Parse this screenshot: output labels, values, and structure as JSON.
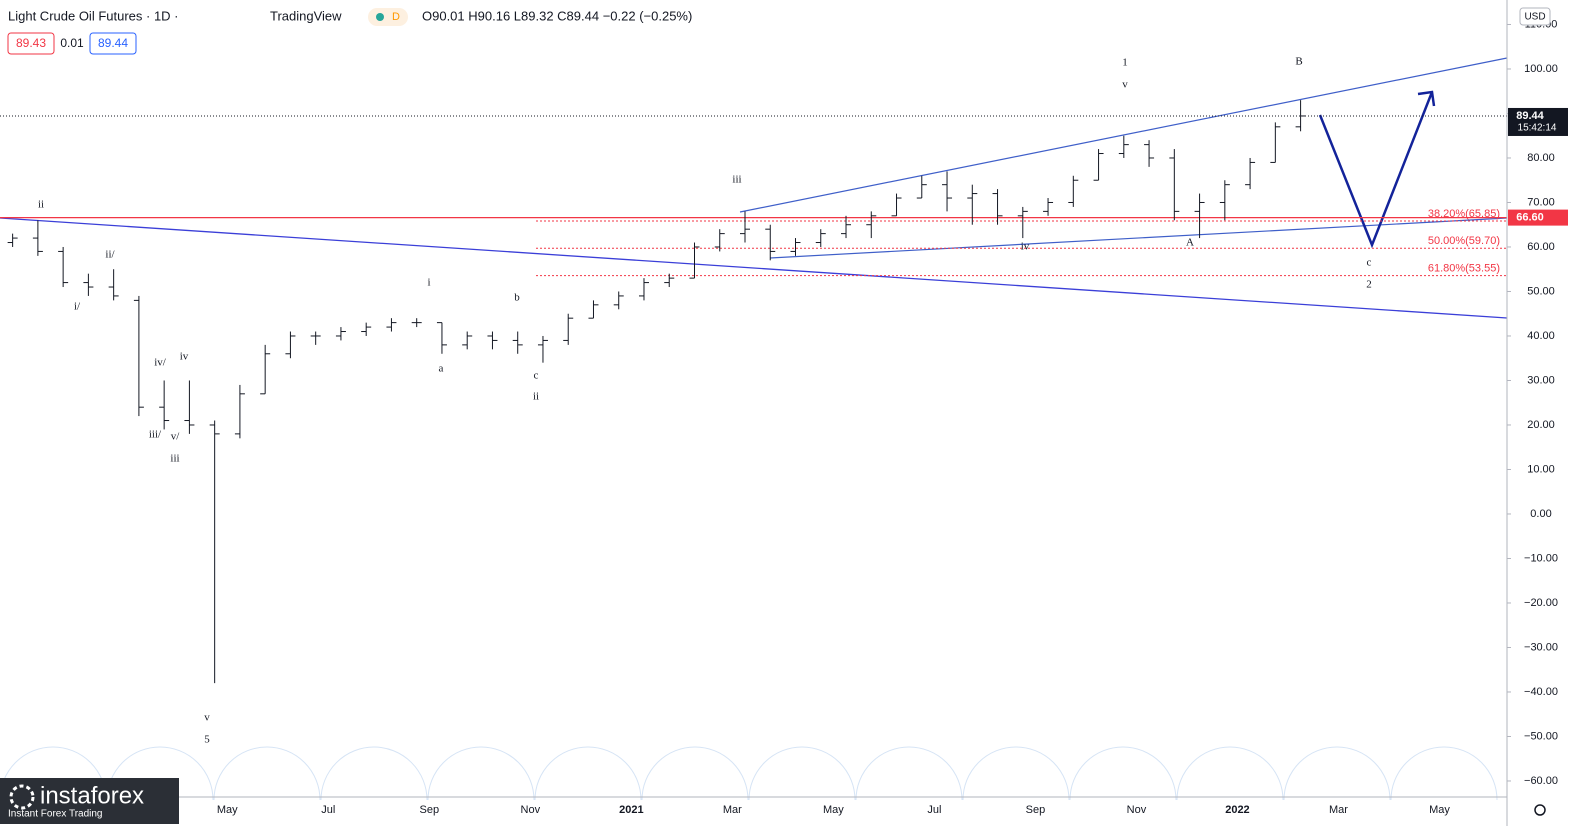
{
  "header": {
    "symbol": "Light Crude Oil Futures · 1D ·",
    "brand": "TradingView",
    "interval_badge": "D",
    "ohlc": "O90.01 H90.16 L89.32 C89.44 −0.22 (−0.25%)",
    "bid": "89.43",
    "spread": "0.01",
    "ask": "89.44",
    "currency": "USD"
  },
  "logo": {
    "name": "instaforex",
    "tagline": "Instant Forex Trading"
  },
  "chart_data": {
    "type": "ohlc",
    "categories": [
      null,
      null,
      null,
      null,
      null,
      null,
      null,
      null,
      null,
      "May",
      null,
      null,
      null,
      "Jul",
      null,
      null,
      null,
      "Sep",
      null,
      null,
      null,
      "Nov",
      null,
      null,
      null,
      "2021",
      null,
      null,
      null,
      "Mar",
      null,
      null,
      null,
      "May",
      null,
      null,
      null,
      "Jul",
      null,
      null,
      null,
      "Sep",
      null,
      null,
      null,
      "Nov",
      null,
      null,
      null,
      "2022",
      null,
      null,
      null,
      "Mar",
      null,
      null,
      null,
      "May",
      null
    ],
    "open": [
      61,
      62,
      59,
      52,
      51,
      48,
      24,
      21,
      20,
      18,
      27,
      36,
      40,
      40,
      41,
      42,
      43,
      43,
      38,
      40,
      39,
      38,
      39,
      44,
      47,
      49,
      52,
      53,
      60,
      63,
      64,
      59,
      61,
      63,
      65,
      67,
      71,
      74,
      71,
      72,
      67,
      68,
      70,
      75,
      81,
      83,
      80,
      68,
      70,
      74,
      79,
      87,
      null,
      null,
      null,
      null,
      null,
      null,
      null
    ],
    "high": [
      63,
      66,
      60,
      54,
      55,
      49,
      30,
      30,
      21,
      29,
      38,
      41,
      41,
      42,
      43,
      44,
      44,
      43,
      41,
      41,
      41,
      40,
      45,
      48,
      50,
      53,
      54,
      61,
      64,
      68,
      65,
      62,
      64,
      67,
      68,
      72,
      76,
      77,
      74,
      73,
      69,
      71,
      76,
      82,
      85,
      84,
      82,
      72,
      75,
      80,
      88,
      93,
      null,
      null,
      null,
      null,
      null,
      null,
      null
    ],
    "low": [
      60,
      58,
      51,
      49,
      48,
      22,
      19,
      18,
      -38,
      17,
      27,
      35,
      38,
      39,
      40,
      41,
      42,
      36,
      37,
      37,
      36,
      34,
      38,
      44,
      46,
      48,
      51,
      53,
      59,
      61,
      57,
      58,
      60,
      62,
      62,
      67,
      71,
      68,
      65,
      65,
      62,
      67,
      69,
      75,
      80,
      78,
      66,
      62,
      66,
      73,
      79,
      86,
      null,
      null,
      null,
      null,
      null,
      null,
      null
    ],
    "close": [
      62,
      59,
      52,
      51,
      49,
      24,
      21,
      20,
      18,
      27,
      36,
      40,
      40,
      41,
      42,
      43,
      43,
      38,
      40,
      39,
      38,
      39,
      44,
      47,
      49,
      52,
      53,
      60,
      63,
      64,
      59,
      61,
      63,
      65,
      67,
      71,
      74,
      71,
      72,
      67,
      68,
      70,
      75,
      81,
      83,
      80,
      68,
      70,
      74,
      79,
      87,
      89.44,
      null,
      null,
      null,
      null,
      null,
      null,
      null
    ],
    "color": "#131722",
    "ylim": [
      -63.6,
      115.5
    ],
    "yticks": [
      {
        "value": 110,
        "label": "110.00"
      },
      {
        "value": 100,
        "label": "100.00"
      },
      {
        "value": 90,
        "label": "90.00"
      },
      {
        "value": 80,
        "label": "80.00"
      },
      {
        "value": 70,
        "label": "70.00"
      },
      {
        "value": 60,
        "label": "60.00"
      },
      {
        "value": 50,
        "label": "50.00"
      },
      {
        "value": 40,
        "label": "40.00"
      },
      {
        "value": 30,
        "label": "30.00"
      },
      {
        "value": 20,
        "label": "20.00"
      },
      {
        "value": 10,
        "label": "10.00"
      },
      {
        "value": 0,
        "label": "0.00"
      },
      {
        "value": -10,
        "label": "−10.00"
      },
      {
        "value": -20,
        "label": "−20.00"
      },
      {
        "value": -30,
        "label": "−30.00"
      },
      {
        "value": -40,
        "label": "−40.00"
      },
      {
        "value": -50,
        "label": "−50.00"
      },
      {
        "value": -60,
        "label": "−60.00"
      }
    ],
    "grid": false,
    "fib_levels": [
      {
        "value": 65.85,
        "label": "38.20%(65.85)"
      },
      {
        "value": 59.7,
        "label": "50.00%(59.70)"
      },
      {
        "value": 53.55,
        "label": "61.80%(53.55)"
      }
    ],
    "fib_color": "#f23645",
    "alert_line": {
      "value": 66.6,
      "label": "66.60"
    },
    "last_price": 89.44,
    "countdown": "15:42:14",
    "annotations": [
      "ii",
      "ii/",
      "i/",
      "iv/",
      "iv",
      "iii/",
      "v/",
      "iii",
      "v",
      "5",
      "i",
      "a",
      "b",
      "c",
      "ii",
      "iii",
      "iv",
      "1",
      "v",
      "A",
      "B",
      "c",
      "2"
    ]
  }
}
